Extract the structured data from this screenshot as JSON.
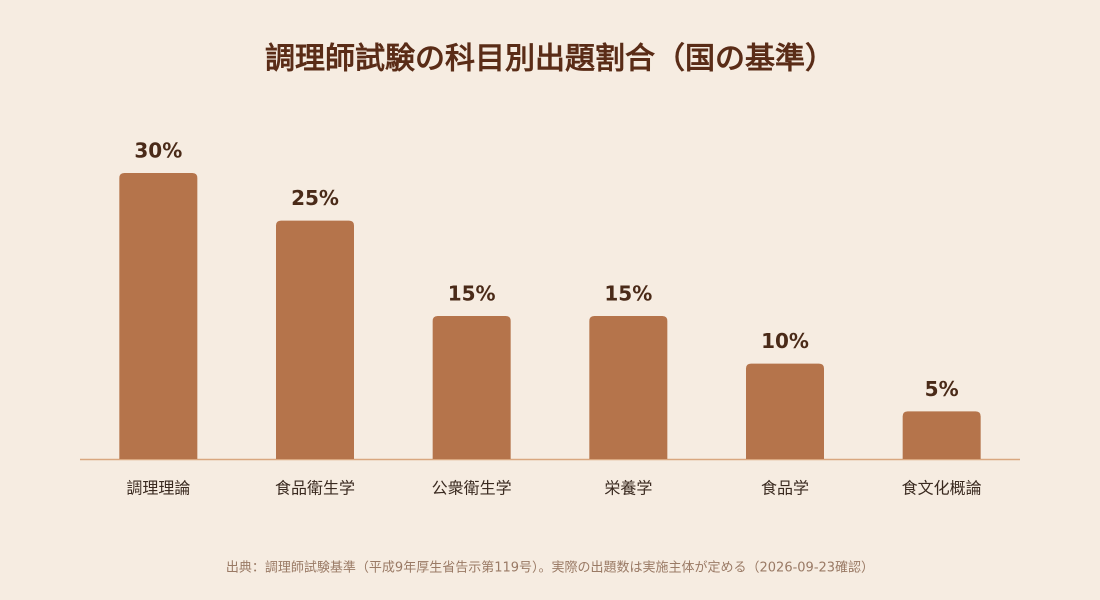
{
  "chart_data": {
    "type": "bar",
    "title": "調理師試験の科目別出題割合（国の基準）",
    "categories": [
      "調理理論",
      "食品衛生学",
      "公衆衛生学",
      "栄養学",
      "食品学",
      "食文化概論"
    ],
    "values": [
      30,
      25,
      15,
      15,
      10,
      5
    ],
    "value_labels": [
      "30%",
      "25%",
      "15%",
      "15%",
      "10%",
      "5%"
    ],
    "color": "#b5744b",
    "source": "出典：調理師試験基準（平成9年厚生省告示第119号）。実際の出題数は実施主体が定める（2026-09-23確認）"
  }
}
